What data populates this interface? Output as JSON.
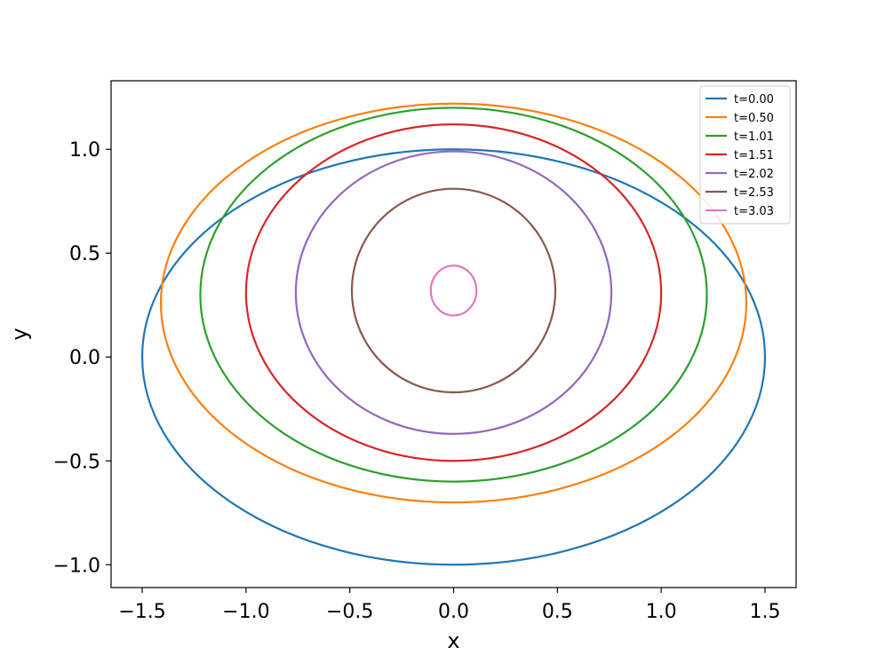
{
  "chart_data": {
    "type": "line",
    "title": "",
    "xlabel": "x",
    "ylabel": "y",
    "xlim": [
      -1.65,
      1.65
    ],
    "ylim": [
      -1.11,
      1.33
    ],
    "xticks": [
      -1.5,
      -1.0,
      -0.5,
      0.0,
      0.5,
      1.0,
      1.5
    ],
    "xtick_labels": [
      "−1.5",
      "−1.0",
      "−0.5",
      "0.0",
      "0.5",
      "1.0",
      "1.5"
    ],
    "yticks": [
      -1.0,
      -0.5,
      0.0,
      0.5,
      1.0
    ],
    "ytick_labels": [
      "−1.0",
      "−0.5",
      "0.0",
      "0.5",
      "1.0"
    ],
    "grid": false,
    "legend_position": "top-right",
    "series_shape": "ellipse",
    "series": [
      {
        "name": "t=0.00",
        "color": "#1f77b4",
        "center_x": 0.0,
        "center_y": 0.0,
        "x_radius": 1.5,
        "y_radius": 1.0
      },
      {
        "name": "t=0.50",
        "color": "#ff7f0e",
        "center_x": 0.0,
        "center_y": 0.26,
        "x_radius": 1.41,
        "y_radius": 0.96
      },
      {
        "name": "t=1.01",
        "color": "#2ca02c",
        "center_x": 0.0,
        "center_y": 0.3,
        "x_radius": 1.22,
        "y_radius": 0.9
      },
      {
        "name": "t=1.51",
        "color": "#d62728",
        "center_x": 0.0,
        "center_y": 0.31,
        "x_radius": 1.0,
        "y_radius": 0.81
      },
      {
        "name": "t=2.02",
        "color": "#9467bd",
        "center_x": 0.0,
        "center_y": 0.31,
        "x_radius": 0.76,
        "y_radius": 0.68
      },
      {
        "name": "t=2.53",
        "color": "#8c564b",
        "center_x": 0.0,
        "center_y": 0.32,
        "x_radius": 0.49,
        "y_radius": 0.49
      },
      {
        "name": "t=3.03",
        "color": "#e377c2",
        "center_x": 0.0,
        "center_y": 0.32,
        "x_radius": 0.11,
        "y_radius": 0.12
      }
    ]
  }
}
